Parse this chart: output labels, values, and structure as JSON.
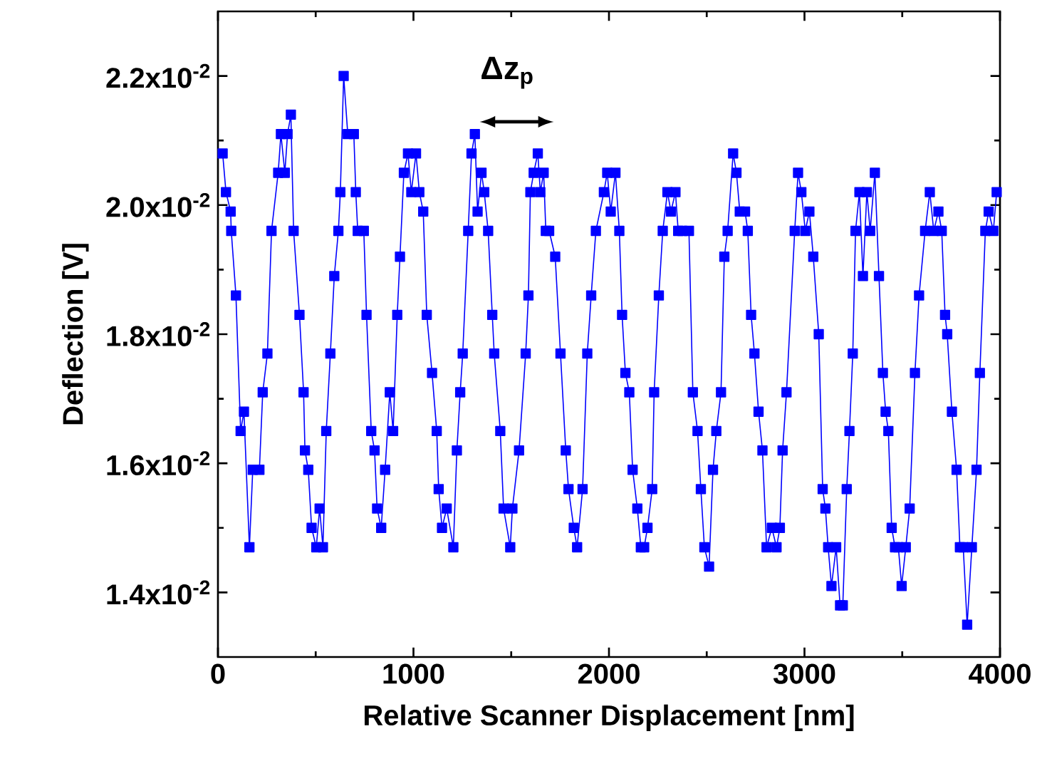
{
  "chart_data": {
    "type": "line",
    "xlabel": "Relative Scanner Displacement [nm]",
    "ylabel": "Deflection [V]",
    "annotations": [
      "Δz$_{p}$"
    ],
    "xlim": [
      0,
      4000
    ],
    "xticks": [
      0,
      1000,
      2000,
      3000,
      4000
    ],
    "ylim": [
      0.013,
      0.023
    ],
    "yticks": [
      {
        "value": 0.014,
        "label": "1.4x10$^{-2}$"
      },
      {
        "value": 0.016,
        "label": "1.6x10$^{-2}$"
      },
      {
        "value": 0.018,
        "label": "1.8x10$^{-2}$"
      },
      {
        "value": 0.02,
        "label": "2.0x10$^{-2}$"
      },
      {
        "value": 0.022,
        "label": "2.2x10$^{-2}$"
      }
    ],
    "marker": "square",
    "line_style": "solid",
    "grid": false,
    "x": [
      24,
      41,
      65,
      68,
      92,
      116,
      133,
      161,
      178,
      212,
      229,
      253,
      274,
      308,
      322,
      342,
      356,
      373,
      387,
      417,
      438,
      445,
      462,
      479,
      503,
      520,
      537,
      554,
      575,
      595,
      616,
      626,
      643,
      664,
      695,
      705,
      715,
      746,
      760,
      784,
      801,
      814,
      835,
      855,
      879,
      896,
      917,
      931,
      951,
      972,
      989,
      1013,
      1030,
      1050,
      1068,
      1095,
      1119,
      1129,
      1146,
      1170,
      1204,
      1222,
      1239,
      1252,
      1280,
      1297,
      1314,
      1328,
      1348,
      1362,
      1382,
      1403,
      1413,
      1444,
      1461,
      1495,
      1506,
      1540,
      1574,
      1588,
      1598,
      1615,
      1636,
      1649,
      1666,
      1677,
      1694,
      1725,
      1752,
      1779,
      1793,
      1820,
      1837,
      1865,
      1889,
      1909,
      1933,
      1974,
      1991,
      2009,
      2033,
      2053,
      2067,
      2084,
      2104,
      2121,
      2145,
      2163,
      2180,
      2197,
      2221,
      2231,
      2255,
      2275,
      2299,
      2317,
      2340,
      2354,
      2375,
      2409,
      2429,
      2453,
      2470,
      2488,
      2512,
      2532,
      2549,
      2573,
      2590,
      2607,
      2635,
      2652,
      2669,
      2696,
      2710,
      2727,
      2744,
      2765,
      2785,
      2806,
      2833,
      2857,
      2874,
      2888,
      2908,
      2950,
      2967,
      2984,
      3004,
      3025,
      3045,
      3073,
      3093,
      3107,
      3121,
      3138,
      3162,
      3182,
      3196,
      3216,
      3230,
      3247,
      3261,
      3281,
      3299,
      3319,
      3336,
      3360,
      3381,
      3401,
      3415,
      3429,
      3446,
      3463,
      3480,
      3497,
      3518,
      3538,
      3565,
      3586,
      3617,
      3641,
      3661,
      3685,
      3702,
      3719,
      3730,
      3754,
      3778,
      3795,
      3812,
      3832,
      3856,
      3880,
      3897,
      3925,
      3942,
      3966,
      3983
    ],
    "series": [
      {
        "color": "#0000ff",
        "values": [
          0.0208,
          0.0202,
          0.0199,
          0.0196,
          0.0186,
          0.0165,
          0.0168,
          0.0147,
          0.0159,
          0.0159,
          0.0171,
          0.0177,
          0.0196,
          0.0205,
          0.0211,
          0.0205,
          0.0211,
          0.0214,
          0.0196,
          0.0183,
          0.0171,
          0.0162,
          0.0159,
          0.015,
          0.0147,
          0.0153,
          0.0147,
          0.0165,
          0.0177,
          0.0189,
          0.0196,
          0.0202,
          0.022,
          0.0211,
          0.0211,
          0.0202,
          0.0196,
          0.0196,
          0.0183,
          0.0165,
          0.0162,
          0.0153,
          0.015,
          0.0159,
          0.0171,
          0.0165,
          0.0183,
          0.0192,
          0.0205,
          0.0208,
          0.0202,
          0.0208,
          0.0202,
          0.0199,
          0.0183,
          0.0174,
          0.0165,
          0.0156,
          0.015,
          0.0153,
          0.0147,
          0.0162,
          0.0171,
          0.0177,
          0.0196,
          0.0208,
          0.0211,
          0.0199,
          0.0205,
          0.0202,
          0.0196,
          0.0183,
          0.0177,
          0.0165,
          0.0153,
          0.0147,
          0.0153,
          0.0162,
          0.0177,
          0.0186,
          0.0202,
          0.0205,
          0.0208,
          0.0202,
          0.0205,
          0.0196,
          0.0196,
          0.0192,
          0.0177,
          0.0162,
          0.0156,
          0.015,
          0.0147,
          0.0156,
          0.0177,
          0.0186,
          0.0196,
          0.0202,
          0.0205,
          0.0199,
          0.0205,
          0.0196,
          0.0183,
          0.0174,
          0.0171,
          0.0159,
          0.0153,
          0.0147,
          0.0147,
          0.015,
          0.0156,
          0.0171,
          0.0186,
          0.0196,
          0.0202,
          0.0199,
          0.0202,
          0.0196,
          0.0196,
          0.0196,
          0.0171,
          0.0165,
          0.0156,
          0.0147,
          0.0144,
          0.0159,
          0.0165,
          0.0171,
          0.0192,
          0.0196,
          0.0208,
          0.0205,
          0.0199,
          0.0199,
          0.0196,
          0.0183,
          0.0177,
          0.0168,
          0.0162,
          0.0147,
          0.015,
          0.0147,
          0.015,
          0.0162,
          0.0171,
          0.0196,
          0.0205,
          0.0202,
          0.0196,
          0.0199,
          0.0192,
          0.018,
          0.0156,
          0.0153,
          0.0147,
          0.0141,
          0.0147,
          0.0138,
          0.0138,
          0.0156,
          0.0165,
          0.0177,
          0.0196,
          0.0202,
          0.0189,
          0.0202,
          0.0196,
          0.0205,
          0.0189,
          0.0174,
          0.0168,
          0.0165,
          0.015,
          0.0147,
          0.0147,
          0.0141,
          0.0147,
          0.0153,
          0.0174,
          0.0186,
          0.0196,
          0.0202,
          0.0196,
          0.0199,
          0.0196,
          0.0183,
          0.018,
          0.0168,
          0.0159,
          0.0147,
          0.0147,
          0.0135,
          0.0147,
          0.0159,
          0.0174,
          0.0196,
          0.0199,
          0.0196,
          0.0202
        ]
      }
    ]
  }
}
